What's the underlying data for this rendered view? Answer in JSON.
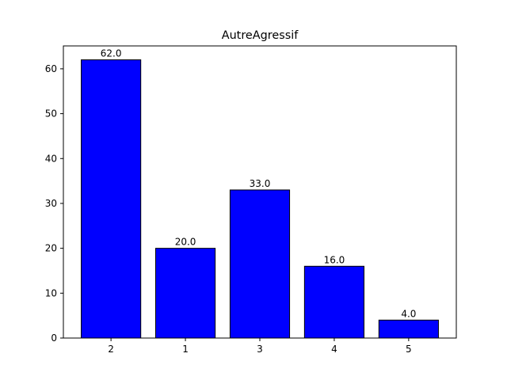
{
  "chart_data": {
    "type": "bar",
    "title": "AutreAgressif",
    "xlabel": "",
    "ylabel": "",
    "categories": [
      "2",
      "1",
      "3",
      "4",
      "5"
    ],
    "values": [
      62.0,
      20.0,
      33.0,
      16.0,
      4.0
    ],
    "data_labels": [
      "62.0",
      "20.0",
      "33.0",
      "16.0",
      "4.0"
    ],
    "ylim": [
      0,
      65.1
    ],
    "yticks": [
      0,
      10,
      20,
      30,
      40,
      50,
      60
    ],
    "grid": false,
    "bar_color": "#0000ff",
    "bar_edge_color": "#000000"
  }
}
